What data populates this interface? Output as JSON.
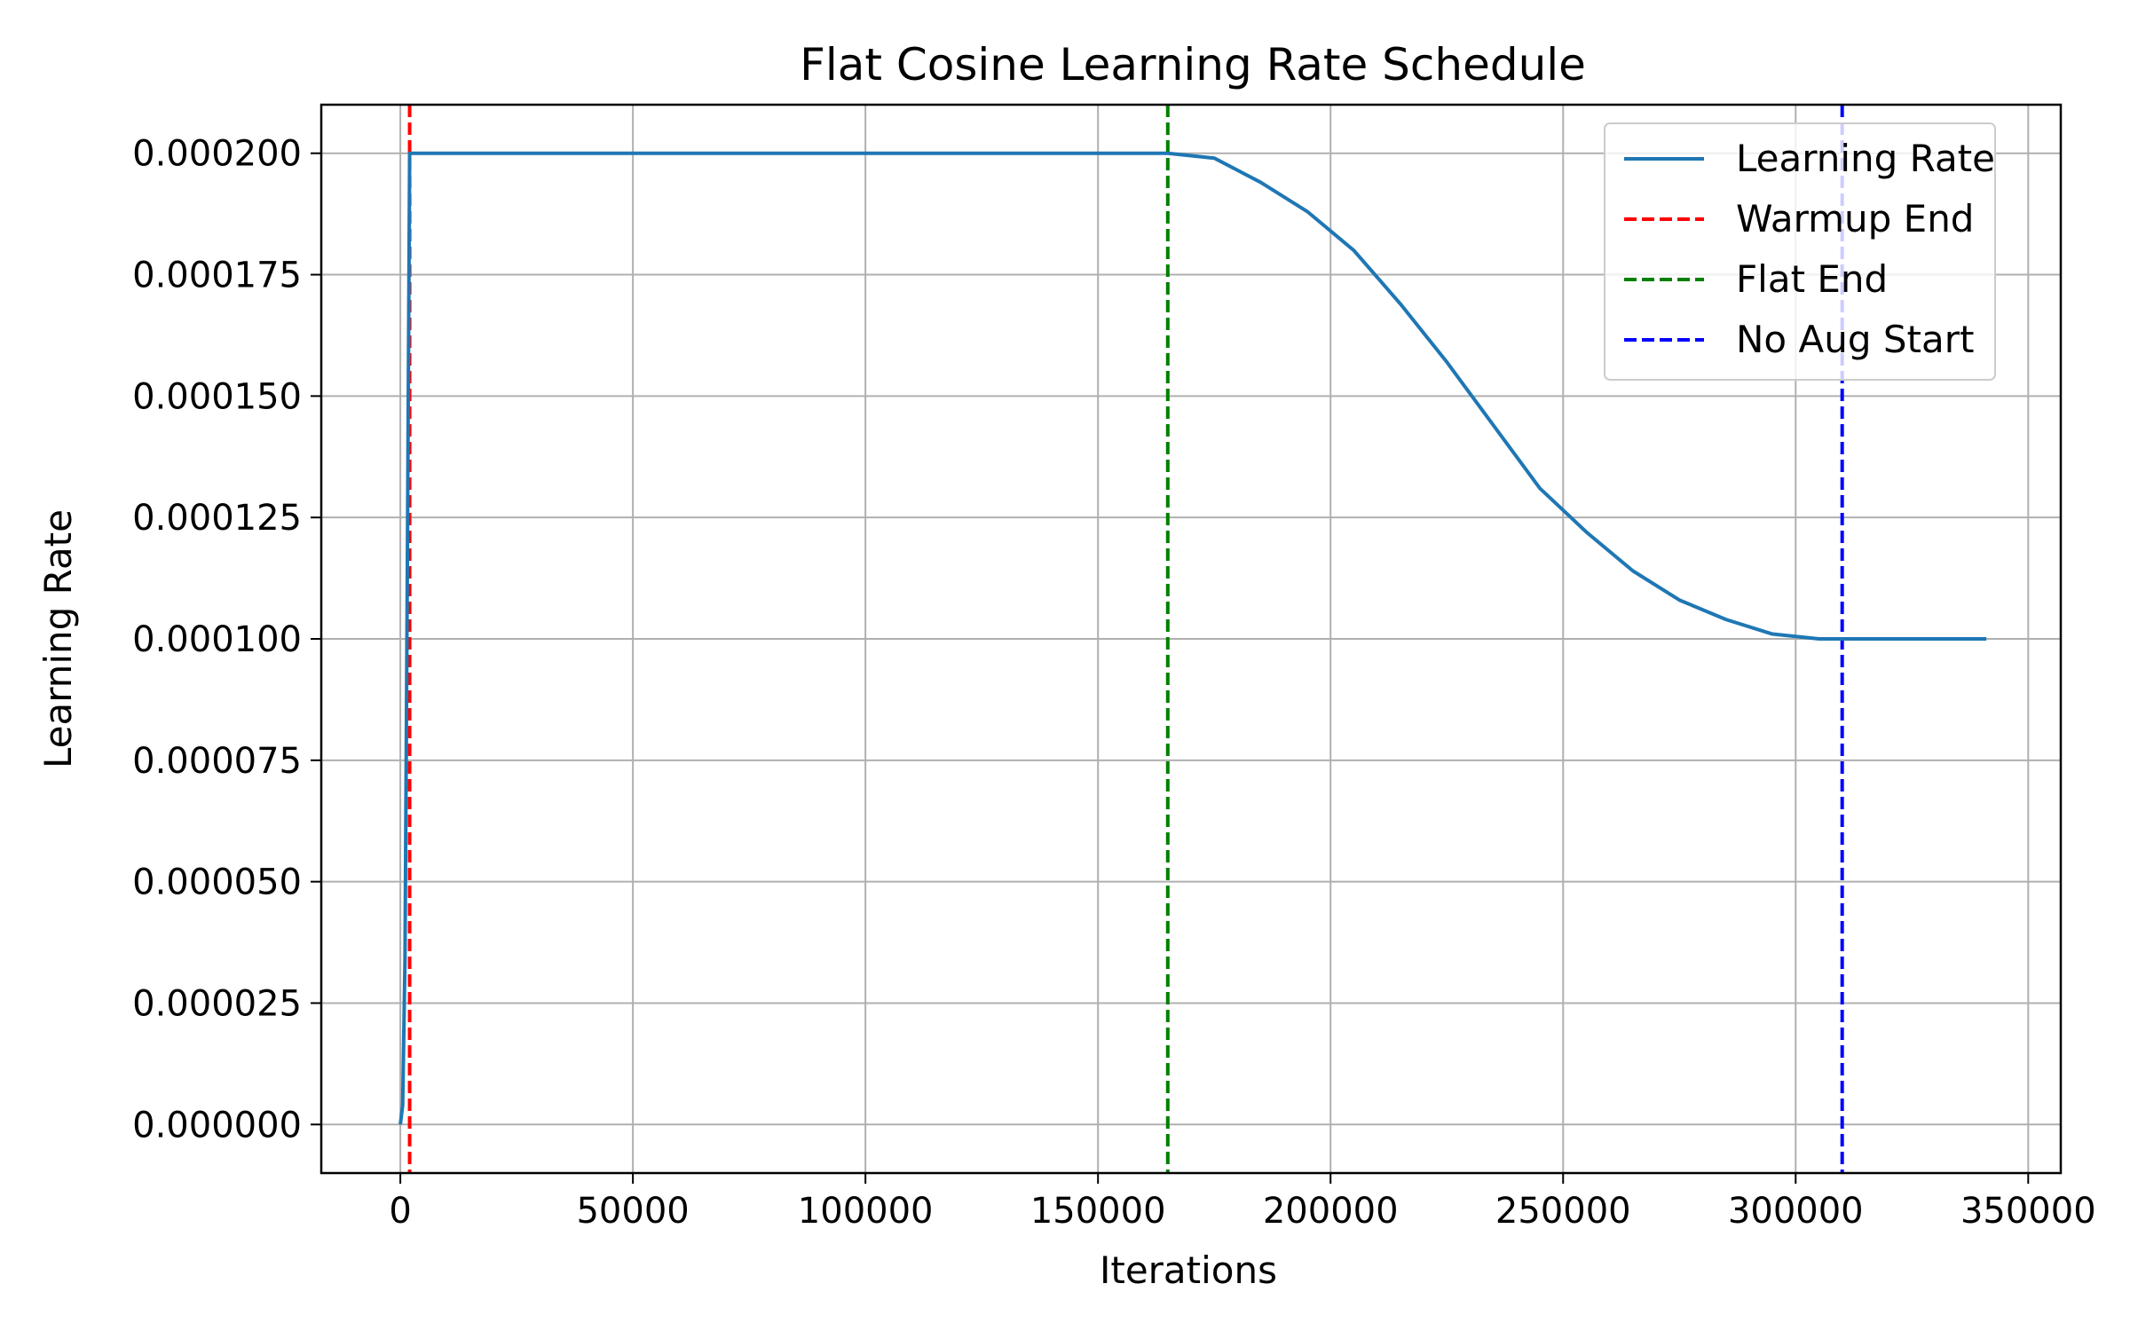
{
  "chart_data": {
    "type": "line",
    "title": "Flat Cosine Learning Rate Schedule",
    "xlabel": "Iterations",
    "ylabel": "Learning Rate",
    "xlim": [
      -17000,
      357000
    ],
    "ylim": [
      -1e-05,
      0.00021
    ],
    "x_ticks": [
      0,
      50000,
      100000,
      150000,
      200000,
      250000,
      300000,
      350000
    ],
    "x_tick_labels": [
      "0",
      "50000",
      "100000",
      "150000",
      "200000",
      "250000",
      "300000",
      "350000"
    ],
    "y_ticks": [
      0,
      2.5e-05,
      5e-05,
      7.5e-05,
      0.0001,
      0.000125,
      0.00015,
      0.000175,
      0.0002
    ],
    "y_tick_labels": [
      "0.000000",
      "0.000025",
      "0.000050",
      "0.000075",
      "0.000100",
      "0.000125",
      "0.000150",
      "0.000175",
      "0.000200"
    ],
    "grid": true,
    "legend_position": "top-right",
    "series": [
      {
        "name": "Learning Rate",
        "color": "#1f77b4",
        "style": "solid",
        "x": [
          0,
          500,
          1000,
          1500,
          2000,
          165000,
          175000,
          185000,
          195000,
          205000,
          215000,
          225000,
          235000,
          245000,
          255000,
          265000,
          275000,
          285000,
          295000,
          305000,
          310000,
          341000
        ],
        "y": [
          0,
          4e-06,
          3.4e-05,
          0.000114,
          0.0002,
          0.0002,
          0.000199,
          0.000194,
          0.000188,
          0.00018,
          0.000169,
          0.000157,
          0.000144,
          0.000131,
          0.000122,
          0.000114,
          0.000108,
          0.000104,
          0.000101,
          0.0001,
          0.0001,
          0.0001
        ]
      }
    ],
    "vlines": [
      {
        "name": "Warmup End",
        "x": 2000,
        "color": "#ff0000",
        "style": "dashed"
      },
      {
        "name": "Flat End",
        "x": 165000,
        "color": "#008000",
        "style": "dashed"
      },
      {
        "name": "No Aug Start",
        "x": 310000,
        "color": "#0000ff",
        "style": "dashed"
      }
    ]
  }
}
